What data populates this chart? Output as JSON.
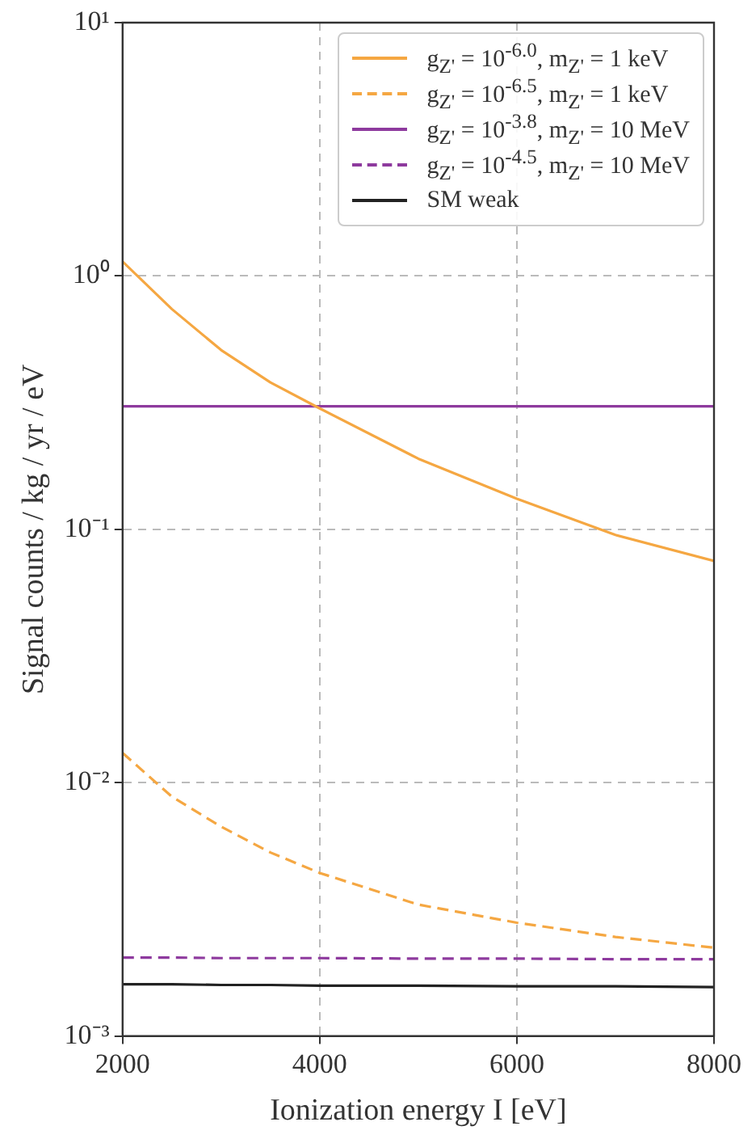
{
  "chart_data": {
    "type": "line",
    "xlabel": "Ionization energy I [eV]",
    "ylabel": "Signal counts / kg / yr / eV",
    "x": [
      2000,
      2500,
      3000,
      3500,
      4000,
      5000,
      6000,
      7000,
      8000
    ],
    "series": [
      {
        "name": "g$_{Z'}$ = 10$^{-6.0}$, m$_{Z'}$ = 1 keV",
        "color": "#f5a742",
        "line_style": "solid",
        "values": [
          1.14,
          0.74,
          0.51,
          0.38,
          0.3,
          0.19,
          0.132,
          0.095,
          0.075
        ]
      },
      {
        "name": "g$_{Z'}$ = 10$^{-6.5}$, m$_{Z'}$ = 1 keV",
        "color": "#f5a742",
        "line_style": "dashed",
        "values": [
          0.0131,
          0.0088,
          0.0067,
          0.0053,
          0.0044,
          0.0033,
          0.0028,
          0.00246,
          0.00223
        ]
      },
      {
        "name": "g$_{Z'}$ = 10$^{-3.8}$, m$_{Z'}$ = 10 MeV",
        "color": "#8e3a9e",
        "line_style": "solid",
        "values": [
          0.306,
          0.306,
          0.306,
          0.306,
          0.306,
          0.306,
          0.306,
          0.306,
          0.306
        ]
      },
      {
        "name": "g$_{Z'}$ = 10$^{-4.5}$, m$_{Z'}$ = 10 MeV",
        "color": "#8e3a9e",
        "line_style": "dashed",
        "values": [
          0.00204,
          0.00204,
          0.00203,
          0.00203,
          0.00203,
          0.00202,
          0.00202,
          0.00201,
          0.00201
        ]
      },
      {
        "name": "SM weak",
        "color": "#222222",
        "line_style": "solid",
        "values": [
          0.0016,
          0.0016,
          0.00159,
          0.00159,
          0.00158,
          0.00158,
          0.00157,
          0.00157,
          0.00156
        ]
      }
    ],
    "xlim": [
      2000,
      8000
    ],
    "xticks": [
      2000,
      4000,
      6000,
      8000
    ],
    "ylim": [
      0.001,
      10
    ],
    "log": "y",
    "yticks": [
      {
        "value": 0.001,
        "label": "10⁻³"
      },
      {
        "value": 0.01,
        "label": "10⁻²"
      },
      {
        "value": 0.1,
        "label": "10⁻¹"
      },
      {
        "value": 1,
        "label": "10⁰"
      },
      {
        "value": 10,
        "label": "10¹"
      }
    ],
    "grid": true,
    "legend": "top right",
    "marker": "none"
  }
}
